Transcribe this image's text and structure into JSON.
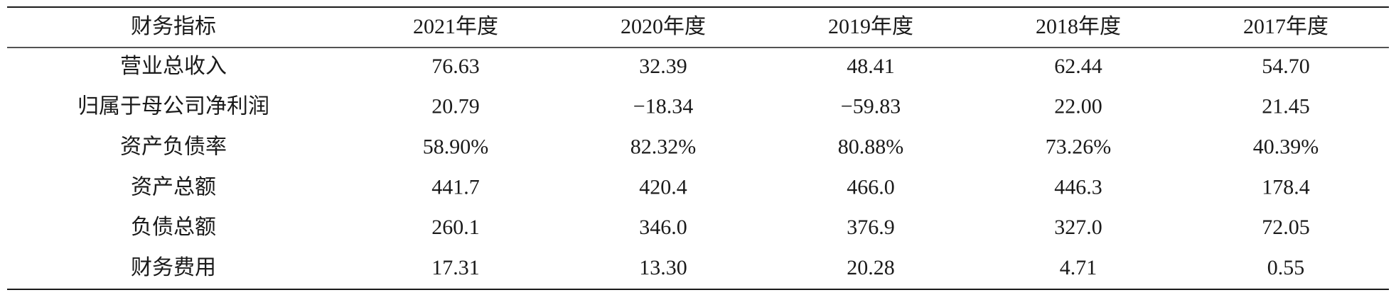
{
  "table": {
    "header": [
      "财务指标",
      "2021年度",
      "2020年度",
      "2019年度",
      "2018年度",
      "2017年度"
    ],
    "rows": [
      [
        "营业总收入",
        "76.63",
        "32.39",
        "48.41",
        "62.44",
        "54.70"
      ],
      [
        "归属于母公司净利润",
        "20.79",
        "−18.34",
        "−59.83",
        "22.00",
        "21.45"
      ],
      [
        "资产负债率",
        "58.90%",
        "82.32%",
        "80.88%",
        "73.26%",
        "40.39%"
      ],
      [
        "资产总额",
        "441.7",
        "420.4",
        "466.0",
        "446.3",
        "178.4"
      ],
      [
        "负债总额",
        "260.1",
        "346.0",
        "376.9",
        "327.0",
        "72.05"
      ],
      [
        "财务费用",
        "17.31",
        "13.30",
        "20.28",
        "4.71",
        "0.55"
      ]
    ]
  }
}
